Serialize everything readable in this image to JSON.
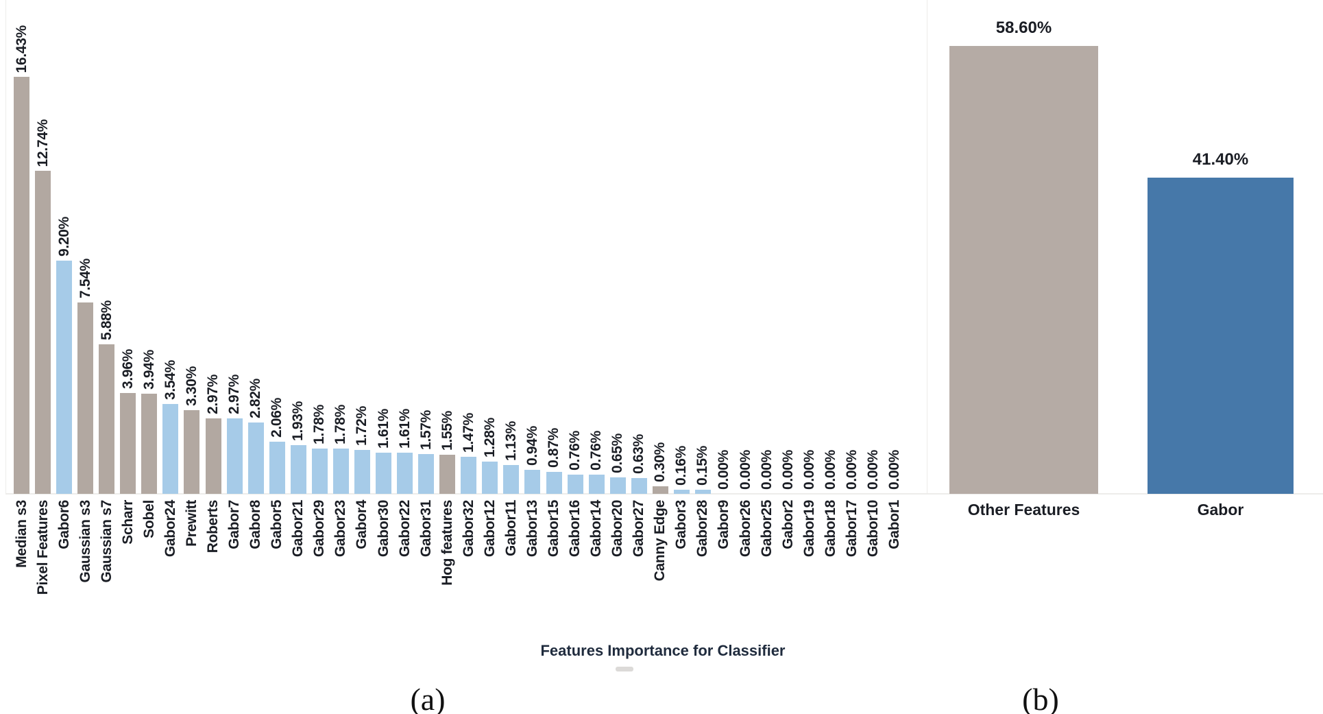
{
  "palette": {
    "a_gray": "#b2a8a1",
    "a_blue": "#a6cbe8",
    "b_gray": "#b5aba5",
    "b_blue": "#4678a9",
    "axis_line": "#edecea",
    "label_text": "#1a1d24",
    "title_text": "#1f2b3d"
  },
  "chart_data": [
    {
      "type": "bar",
      "panel": "a",
      "caption": "(a)",
      "title": "Features Importance for Classifier",
      "orientation": "vertical",
      "grid": false,
      "legend": "none",
      "ylim": [
        0,
        17
      ],
      "value_label_rotation": 90,
      "category_label_rotation": 90,
      "categories": [
        "Median s3",
        "Pixel Features",
        "Gabor6",
        "Gaussian s3",
        "Gaussian s7",
        "Scharr",
        "Sobel",
        "Gabor24",
        "Prewitt",
        "Roberts",
        "Gabor7",
        "Gabor8",
        "Gabor5",
        "Gabor21",
        "Gabor29",
        "Gabor23",
        "Gabor4",
        "Gabor30",
        "Gabor22",
        "Gabor31",
        "Hog features",
        "Gabor32",
        "Gabor12",
        "Gabor11",
        "Gabor13",
        "Gabor15",
        "Gabor16",
        "Gabor14",
        "Gabor20",
        "Gabor27",
        "Canny Edge",
        "Gabor3",
        "Gabor28",
        "Gabor9",
        "Gabor26",
        "Gabor25",
        "Gabor2",
        "Gabor19",
        "Gabor18",
        "Gabor17",
        "Gabor10",
        "Gabor1"
      ],
      "values": [
        16.43,
        12.74,
        9.2,
        7.54,
        5.88,
        3.96,
        3.94,
        3.54,
        3.3,
        2.97,
        2.97,
        2.82,
        2.06,
        1.93,
        1.78,
        1.78,
        1.72,
        1.61,
        1.61,
        1.57,
        1.55,
        1.47,
        1.28,
        1.13,
        0.94,
        0.87,
        0.76,
        0.76,
        0.65,
        0.63,
        0.3,
        0.16,
        0.15,
        0.0,
        0.0,
        0.0,
        0.0,
        0.0,
        0.0,
        0.0,
        0.0,
        0.0
      ],
      "value_labels": [
        "16.43%",
        "12.74%",
        "9.20%",
        "7.54%",
        "5.88%",
        "3.96%",
        "3.94%",
        "3.54%",
        "3.30%",
        "2.97%",
        "2.97%",
        "2.82%",
        "2.06%",
        "1.93%",
        "1.78%",
        "1.78%",
        "1.72%",
        "1.61%",
        "1.61%",
        "1.57%",
        "1.55%",
        "1.47%",
        "1.28%",
        "1.13%",
        "0.94%",
        "0.87%",
        "0.76%",
        "0.76%",
        "0.65%",
        "0.63%",
        "0.30%",
        "0.16%",
        "0.15%",
        "0.00%",
        "0.00%",
        "0.00%",
        "0.00%",
        "0.00%",
        "0.00%",
        "0.00%",
        "0.00%",
        "0.00%"
      ],
      "bar_colors": [
        "a_gray",
        "a_gray",
        "a_blue",
        "a_gray",
        "a_gray",
        "a_gray",
        "a_gray",
        "a_blue",
        "a_gray",
        "a_gray",
        "a_blue",
        "a_blue",
        "a_blue",
        "a_blue",
        "a_blue",
        "a_blue",
        "a_blue",
        "a_blue",
        "a_blue",
        "a_blue",
        "a_gray",
        "a_blue",
        "a_blue",
        "a_blue",
        "a_blue",
        "a_blue",
        "a_blue",
        "a_blue",
        "a_blue",
        "a_blue",
        "a_gray",
        "a_blue",
        "a_blue",
        "a_blue",
        "a_blue",
        "a_blue",
        "a_blue",
        "a_blue",
        "a_blue",
        "a_blue",
        "a_blue",
        "a_blue"
      ]
    },
    {
      "type": "bar",
      "panel": "b",
      "caption": "(b)",
      "title": "",
      "orientation": "vertical",
      "grid": false,
      "legend": "none",
      "ylim": [
        0,
        60
      ],
      "categories": [
        "Other Features",
        "Gabor"
      ],
      "values": [
        58.6,
        41.4
      ],
      "value_labels": [
        "58.60%",
        "41.40%"
      ],
      "bar_colors": [
        "b_gray",
        "b_blue"
      ]
    }
  ]
}
